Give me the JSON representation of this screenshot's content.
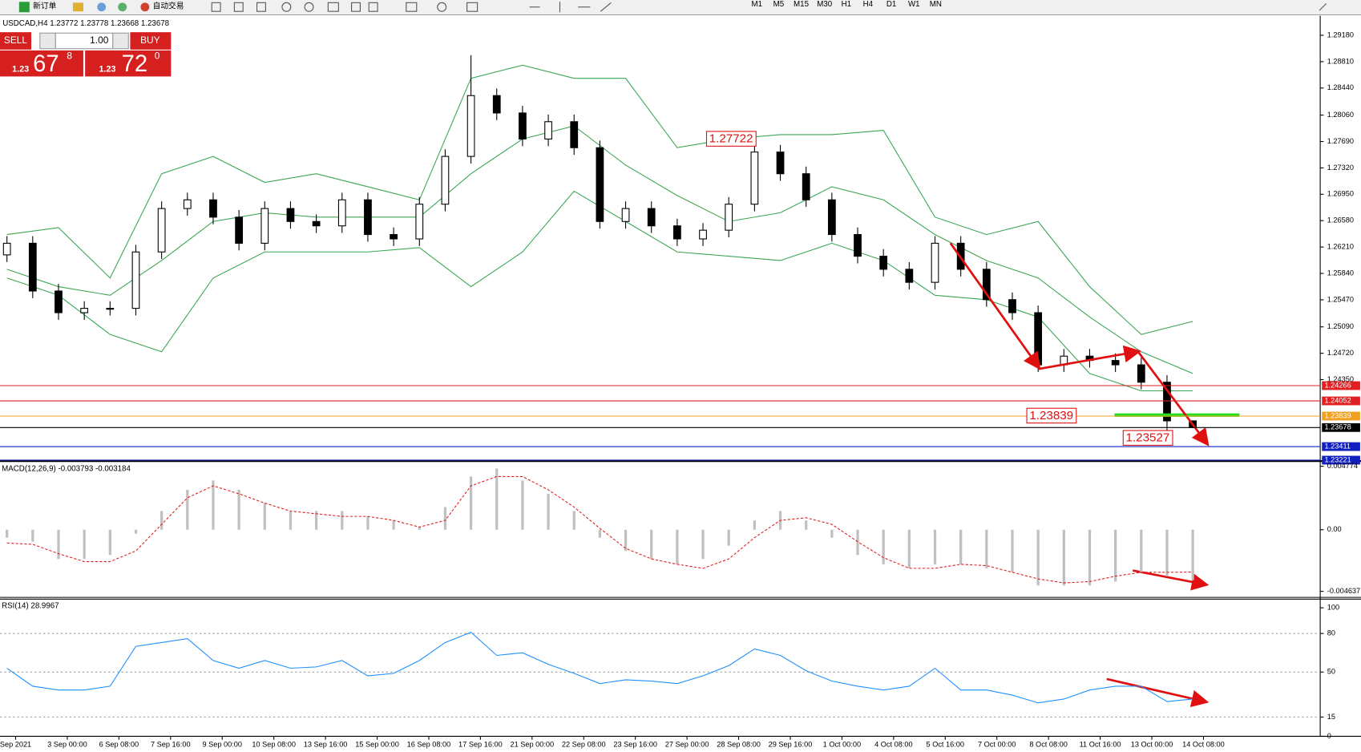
{
  "toolbar": {
    "new_order": "新订单",
    "auto_trading": "自动交易",
    "timeframes": [
      "M1",
      "M5",
      "M15",
      "M30",
      "H1",
      "H4",
      "D1",
      "W1",
      "MN"
    ]
  },
  "trade_panel": {
    "sell": "SELL",
    "lots": "1.00",
    "buy": "BUY",
    "bid": {
      "big": "1.23",
      "pips": "67",
      "point": "8"
    },
    "ask": {
      "big": "1.23",
      "pips": "72",
      "point": "0"
    }
  },
  "time_labels": [
    "Sep 2021",
    "3 Sep 00:00",
    "6 Sep 08:00",
    "7 Sep 16:00",
    "9 Sep 00:00",
    "10 Sep 08:00",
    "13 Sep 16:00",
    "15 Sep 00:00",
    "16 Sep 08:00",
    "17 Sep 16:00",
    "21 Sep 00:00",
    "22 Sep 08:00",
    "23 Sep 16:00",
    "27 Sep 00:00",
    "28 Sep 08:00",
    "29 Sep 16:00",
    "1 Oct 00:00",
    "4 Oct 08:00",
    "5 Oct 16:00",
    "7 Oct 00:00",
    "8 Oct 08:00",
    "11 Oct 16:00",
    "13 Oct 00:00",
    "14 Oct 08:00"
  ],
  "chart_data": [
    {
      "type": "candlestick",
      "title": "USDCAD,H4  1.23772 1.23778 1.23668 1.23678",
      "open": [
        1.261,
        1.26263,
        1.25593,
        1.25289,
        1.2535,
        1.2535,
        1.26141,
        1.2675,
        1.26872,
        1.26629,
        1.26263,
        1.2675,
        1.26568,
        1.26507,
        1.26872,
        1.26385,
        1.26324,
        1.26811,
        1.27481,
        1.28334,
        1.2809,
        1.27725,
        1.27968,
        1.27603,
        1.26568,
        1.2675,
        1.26507,
        1.26324,
        1.26446,
        1.26811,
        1.27542,
        1.27238,
        1.26872,
        1.26385,
        1.26081,
        1.25898,
        1.25715,
        1.26263,
        1.25898,
        1.25472,
        1.25289,
        1.24558,
        1.2468,
        1.24619,
        1.24558,
        1.24314,
        1.23772
      ],
      "high": [
        1.26363,
        1.26363,
        1.25693,
        1.2545,
        1.2545,
        1.26241,
        1.2685,
        1.26972,
        1.26972,
        1.26729,
        1.2685,
        1.2685,
        1.26668,
        1.26972,
        1.26972,
        1.26485,
        1.26911,
        1.27581,
        1.289,
        1.28434,
        1.2819,
        1.28068,
        1.28068,
        1.27703,
        1.2685,
        1.2685,
        1.26607,
        1.26546,
        1.26911,
        1.27722,
        1.27642,
        1.27338,
        1.26972,
        1.26485,
        1.26181,
        1.25998,
        1.26363,
        1.26363,
        1.25998,
        1.25572,
        1.25389,
        1.2478,
        1.2478,
        1.24719,
        1.24658,
        1.24414,
        1.23778
      ],
      "low": [
        1.26,
        1.25493,
        1.25189,
        1.25189,
        1.2525,
        1.2525,
        1.26041,
        1.2665,
        1.26529,
        1.26163,
        1.26163,
        1.26468,
        1.26407,
        1.26407,
        1.26285,
        1.26224,
        1.26224,
        1.26711,
        1.27381,
        1.2799,
        1.27625,
        1.27625,
        1.27503,
        1.26468,
        1.26468,
        1.26407,
        1.26224,
        1.26224,
        1.26346,
        1.26711,
        1.27138,
        1.26772,
        1.26285,
        1.25981,
        1.25798,
        1.25615,
        1.25615,
        1.25798,
        1.25372,
        1.25189,
        1.24458,
        1.24458,
        1.24519,
        1.24458,
        1.24214,
        1.23527,
        1.23668
      ],
      "close": [
        1.26263,
        1.25593,
        1.25289,
        1.2535,
        1.2535,
        1.26141,
        1.2675,
        1.26872,
        1.26629,
        1.26263,
        1.2675,
        1.26568,
        1.26507,
        1.26872,
        1.26385,
        1.26324,
        1.26811,
        1.27481,
        1.28334,
        1.2809,
        1.27725,
        1.27968,
        1.27603,
        1.26568,
        1.2675,
        1.26507,
        1.26324,
        1.26446,
        1.26811,
        1.27542,
        1.27238,
        1.26872,
        1.26385,
        1.26081,
        1.25898,
        1.25715,
        1.26263,
        1.25898,
        1.25472,
        1.25289,
        1.24558,
        1.2468,
        1.24619,
        1.24558,
        1.24314,
        1.23772,
        1.23678
      ],
      "color_up": "#ffffff",
      "color_down": "#000000",
      "bands": {
        "color": "#3aa655",
        "x": [
          0,
          2,
          4,
          6,
          8,
          10,
          12,
          14,
          16,
          18,
          20,
          22,
          24,
          26,
          28,
          30,
          32,
          34,
          36,
          38,
          40,
          42,
          44,
          46
        ],
        "upper": [
          1.26385,
          1.26482,
          1.25776,
          1.27238,
          1.27481,
          1.27116,
          1.27238,
          1.27055,
          1.26872,
          1.28577,
          1.2876,
          1.28577,
          1.28577,
          1.27603,
          1.27725,
          1.27786,
          1.27786,
          1.27847,
          1.26629,
          1.26385,
          1.26568,
          1.25654,
          1.24984,
          1.25167
        ],
        "middle": [
          1.25898,
          1.25654,
          1.25533,
          1.2602,
          1.26568,
          1.2669,
          1.26629,
          1.26629,
          1.26629,
          1.27238,
          1.27725,
          1.27908,
          1.27359,
          1.26933,
          1.26568,
          1.2669,
          1.27055,
          1.26872,
          1.26385,
          1.2602,
          1.25776,
          1.25228,
          1.24741,
          1.24436
        ],
        "lower": [
          1.25776,
          1.25533,
          1.24984,
          1.24741,
          1.25776,
          1.26141,
          1.26141,
          1.26141,
          1.26202,
          1.25654,
          1.26141,
          1.26994,
          1.26568,
          1.26141,
          1.26081,
          1.2602,
          1.26263,
          1.2602,
          1.25533,
          1.25472,
          1.25228,
          1.24436,
          1.24193,
          1.24193
        ]
      },
      "ylim": [
        1.2322,
        1.2943
      ],
      "yticks": [
        {
          "value": 1.2918,
          "label": "1.29180"
        },
        {
          "value": 1.2881,
          "label": "1.28810"
        },
        {
          "value": 1.2844,
          "label": "1.28440"
        },
        {
          "value": 1.2806,
          "label": "1.28060"
        },
        {
          "value": 1.2769,
          "label": "1.27690"
        },
        {
          "value": 1.2732,
          "label": "1.27320"
        },
        {
          "value": 1.2695,
          "label": "1.26950"
        },
        {
          "value": 1.2658,
          "label": "1.26580"
        },
        {
          "value": 1.2621,
          "label": "1.26210"
        },
        {
          "value": 1.2584,
          "label": "1.25840"
        },
        {
          "value": 1.2547,
          "label": "1.25470"
        },
        {
          "value": 1.2509,
          "label": "1.25090"
        },
        {
          "value": 1.2472,
          "label": "1.24720"
        },
        {
          "value": 1.2435,
          "label": "1.24350"
        }
      ],
      "levels": [
        {
          "value": 1.24266,
          "color": "#e02020"
        },
        {
          "value": 1.24052,
          "color": "#e02020"
        },
        {
          "value": 1.23839,
          "color": "#f0a020"
        },
        {
          "value": 1.23678,
          "color": "#000000"
        },
        {
          "value": 1.23411,
          "color": "#1020c0"
        },
        {
          "value": 1.23221,
          "color": "#1020c0"
        }
      ],
      "annotations": [
        1.27722,
        1.23839,
        1.23527
      ]
    },
    {
      "type": "macd",
      "title": "MACD(12,26,9) -0.003793 -0.003184",
      "histogram": [
        -0.0006,
        -0.0009,
        -0.0022,
        -0.0022,
        -0.0019,
        -0.0003,
        0.0014,
        0.003,
        0.0037,
        0.003,
        0.002,
        0.0014,
        0.0014,
        0.0014,
        0.001,
        0.0007,
        0.0002,
        0.0017,
        0.004,
        0.0046,
        0.0037,
        0.0027,
        0.0014,
        -0.0006,
        -0.0016,
        -0.0022,
        -0.0026,
        -0.0022,
        -0.0012,
        0.0007,
        0.0014,
        0.0007,
        -0.0006,
        -0.0019,
        -0.0026,
        -0.0029,
        -0.0026,
        -0.0026,
        -0.0029,
        -0.0032,
        -0.0042,
        -0.0042,
        -0.0042,
        -0.0039,
        -0.0032,
        -0.0035,
        -0.003793
      ],
      "signal": [
        -0.001,
        -0.0011,
        -0.0018,
        -0.0024,
        -0.0024,
        -0.0016,
        0.0004,
        0.0024,
        0.0033,
        0.0027,
        0.002,
        0.0014,
        0.0012,
        0.001,
        0.001,
        0.0007,
        0.0002,
        0.0007,
        0.0033,
        0.004,
        0.004,
        0.003,
        0.0017,
        0.0001,
        -0.0014,
        -0.0022,
        -0.0026,
        -0.0029,
        -0.0022,
        -0.0006,
        0.0007,
        0.0009,
        0.0004,
        -0.0009,
        -0.0021,
        -0.0029,
        -0.0029,
        -0.0026,
        -0.0027,
        -0.0032,
        -0.0037,
        -0.004,
        -0.0039,
        -0.0035,
        -0.0032,
        -0.0032,
        -0.003184
      ],
      "hist_color": "#c0c0c0",
      "signal_color": "#e02020",
      "ylim": [
        -0.00509,
        0.00503
      ],
      "yticks": [
        0.004774,
        {
          "value": 0,
          "label": "0.00"
        },
        -0.004637
      ]
    },
    {
      "type": "line",
      "title": "RSI(14) 28.9967",
      "values": [
        53,
        39,
        36,
        36,
        39,
        70,
        73,
        76,
        59,
        53,
        59,
        53,
        54,
        59,
        47,
        49,
        59,
        73,
        81,
        63,
        65,
        56,
        49,
        41,
        44,
        43,
        41,
        47,
        55,
        68,
        63,
        51,
        43,
        39,
        36,
        39,
        53,
        36,
        36,
        32,
        26,
        29,
        36,
        39,
        39,
        27,
        28.9967
      ],
      "color": "#1e90ff",
      "ylim": [
        0,
        100
      ],
      "yticks": [
        0,
        15,
        50,
        80,
        100
      ],
      "levels": [
        15,
        50,
        80
      ]
    }
  ]
}
